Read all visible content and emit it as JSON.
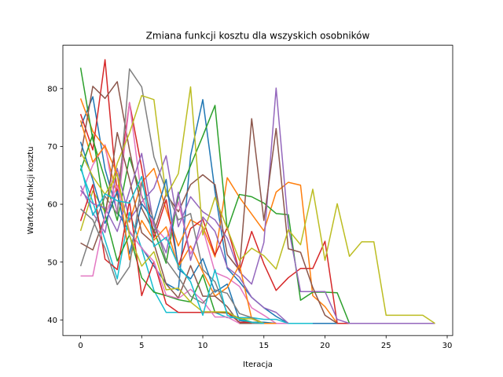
{
  "chart_data": {
    "type": "line",
    "title": "Zmiana funkcji kosztu dla wszyskich osobników",
    "xlabel": "Iteracja",
    "ylabel": "Wartość funkcji kosztu",
    "xlim": [
      -1.45,
      30.45
    ],
    "ylim": [
      37.3,
      87.5
    ],
    "xticks": [
      0,
      5,
      10,
      15,
      20,
      25,
      30
    ],
    "yticks": [
      40,
      50,
      60,
      70,
      80
    ],
    "grid": false,
    "legend": "none",
    "colors": [
      "#1f77b4",
      "#ff7f0e",
      "#2ca02c",
      "#d62728",
      "#9467bd",
      "#8c564b",
      "#e377c2",
      "#7f7f7f",
      "#bcbd22",
      "#17becf"
    ],
    "series": [
      {
        "values": [
          73.4,
          78.6,
          66.1,
          58.7,
          55.2,
          52.5,
          49.3,
          46.3,
          45.1,
          68.4,
          78.1,
          62.2,
          48.9,
          46.6,
          43.9,
          42.1,
          40.6,
          39.4,
          39.4,
          39.4,
          39.4,
          39.4
        ]
      },
      {
        "values": [
          78.3,
          72.6,
          69.8,
          61.4,
          56.9,
          63.8,
          66.2,
          59.1,
          52.8,
          57.3,
          56.1,
          50.9,
          64.6,
          61.2,
          58.3,
          55.4,
          62.1,
          63.8,
          63.3,
          44.2,
          42.3,
          39.4,
          39.4
        ]
      },
      {
        "values": [
          83.6,
          71.2,
          64.3,
          57.2,
          68.1,
          61.5,
          55.4,
          49.8,
          61.4,
          66.7,
          71.8,
          77.1,
          55.6,
          61.7,
          61.3,
          60.2,
          58.4,
          58.2,
          43.4,
          44.8,
          44.8,
          44.7,
          39.4,
          39.4,
          39.4,
          39.4,
          39.4,
          39.4,
          39.4,
          39.4
        ]
      },
      {
        "values": [
          75.6,
          69.4,
          85.0,
          61.6,
          77.6,
          66.3,
          54.2,
          60.8,
          49.3,
          55.8,
          57.4,
          51.2,
          56.0,
          48.4,
          55.3,
          49.7,
          45.1,
          47.3,
          48.9,
          48.9,
          53.6,
          39.4,
          39.4
        ]
      },
      {
        "values": [
          63.2,
          58.5,
          55.1,
          66.2,
          57.3,
          60.4,
          62.8,
          68.4,
          56.1,
          61.3,
          58.7,
          57.3,
          54.1,
          48.3,
          46.2,
          53.4,
          80.1,
          56.1,
          44.9,
          44.9,
          44.9,
          40.1,
          39.4,
          39.4,
          39.4,
          39.4,
          39.4,
          39.4,
          39.4,
          39.4
        ]
      },
      {
        "values": [
          68.2,
          80.4,
          78.3,
          81.2,
          69.4,
          59.3,
          55.2,
          61.8,
          58.7,
          63.4,
          65.1,
          63.4,
          51.3,
          48.6,
          74.8,
          57.2,
          73.1,
          52.3,
          51.7,
          45.6,
          40.8,
          39.4
        ]
      },
      {
        "values": [
          61.4,
          66.8,
          70.3,
          58.4,
          77.6,
          61.2,
          56.3,
          53.8,
          60.4,
          51.4,
          55.8,
          48.2,
          47.3,
          45.8,
          42.1,
          40.8,
          39.4,
          39.4,
          39.4
        ]
      },
      {
        "values": [
          49.3,
          55.8,
          61.4,
          58.3,
          83.4,
          80.3,
          68.2,
          62.4,
          57.3,
          58.4,
          48.7,
          46.6,
          41.2,
          40.3,
          39.4,
          39.4
        ]
      },
      {
        "values": [
          55.4,
          62.3,
          58.7,
          67.1,
          72.3,
          78.8,
          78.1,
          61.4,
          65.3,
          80.3,
          54.7,
          61.2,
          55.8,
          50.3,
          52.4,
          51.1,
          48.8,
          55.6,
          53.0,
          62.6,
          50.3,
          60.1,
          51.0,
          53.5,
          53.5,
          40.8,
          40.8,
          40.8,
          40.8,
          39.4
        ]
      },
      {
        "values": [
          66.2,
          60.4,
          53.8,
          47.1,
          58.6,
          52.3,
          45.1,
          41.3,
          41.3,
          41.3,
          41.3,
          41.3,
          40.4,
          40.4,
          40.4,
          40.1,
          40.1,
          39.4,
          39.4,
          39.4
        ]
      },
      {
        "values": [
          70.8,
          64.2,
          56.7,
          62.3,
          51.4,
          60.1,
          57.2,
          64.3,
          48.8,
          47.1,
          50.6,
          44.8,
          46.2,
          39.9,
          39.6,
          39.6,
          39.4
        ]
      },
      {
        "values": [
          74.5,
          67.3,
          70.1,
          65.2,
          50.4,
          57.2,
          53.8,
          56.1,
          49.2,
          52.8,
          48.3,
          44.1,
          45.6,
          49.5,
          40.2,
          39.4,
          39.4
        ]
      },
      {
        "values": [
          65.8,
          72.1,
          58.3,
          50.2,
          54.7,
          47.3,
          44.8,
          44.2,
          43.5,
          43.1,
          47.8,
          41.3,
          41.2,
          40.3,
          39.6,
          39.4
        ]
      },
      {
        "values": [
          57.1,
          63.4,
          50.5,
          48.7,
          60.6,
          44.2,
          50.1,
          42.8,
          41.3,
          41.3,
          41.3,
          41.3,
          41.3,
          39.6,
          39.6,
          39.4
        ]
      },
      {
        "values": [
          62.4,
          60.1,
          59.4,
          55.3,
          62.3,
          68.8,
          56.3,
          51.6,
          62.1,
          50.3,
          57.8,
          55.3,
          49.1,
          47.4,
          43.9,
          42.1,
          41.3,
          39.4
        ]
      },
      {
        "values": [
          53.3,
          52.1,
          57.8,
          72.4,
          64.3,
          55.1,
          53.2,
          46.2,
          43.8,
          49.4,
          44.1,
          44.1,
          42.3,
          39.4,
          39.4
        ]
      },
      {
        "values": [
          47.6,
          47.6,
          58.1,
          63.3,
          55.4,
          52.4,
          50.1,
          44.3,
          43.7,
          45.3,
          43.3,
          40.5,
          40.5,
          39.4
        ]
      },
      {
        "values": [
          59.2,
          57.3,
          52.4,
          46.1,
          49.2,
          63.7,
          57.1,
          50.3,
          47.4,
          44.1,
          42.9,
          45.2,
          44.6,
          41.1,
          40.4,
          39.4
        ]
      },
      {
        "values": [
          69.1,
          64.8,
          61.7,
          65.2,
          54.6,
          49.3,
          51.8,
          45.2,
          45.5,
          43.1,
          41.4,
          41.4,
          41.4,
          40.2,
          40.2,
          39.4
        ]
      },
      {
        "values": [
          66.8,
          58.1,
          61.8,
          60.6,
          60.2,
          64.8,
          52.7,
          54.3,
          49.4,
          46.6,
          40.8,
          48.7,
          40.8,
          40.1,
          39.6,
          39.4
        ]
      }
    ]
  }
}
